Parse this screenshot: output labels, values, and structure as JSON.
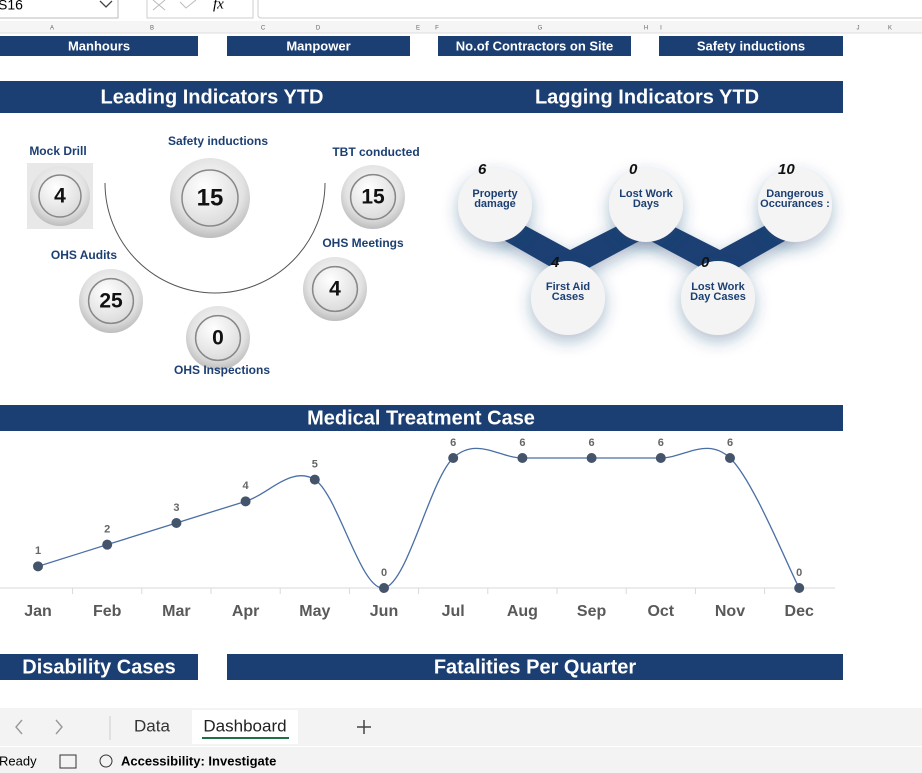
{
  "formula_bar": {
    "name_box": "S16",
    "fx_label": "fx"
  },
  "column_headers": [
    "A",
    "B",
    "C",
    "D",
    "E",
    "F",
    "G",
    "H",
    "I",
    "J",
    "K"
  ],
  "kpi_headers": [
    "Manhours",
    "Manpower",
    "No.of Contractors on Site",
    "Safety inductions"
  ],
  "leading": {
    "title": "Leading Indicators YTD",
    "items": [
      {
        "label": "Mock Drill",
        "value": 4
      },
      {
        "label": "Safety inductions",
        "value": 15
      },
      {
        "label": "TBT conducted",
        "value": 15
      },
      {
        "label": "OHS Audits",
        "value": 25
      },
      {
        "label": "OHS Meetings",
        "value": 4
      },
      {
        "label": "OHS Inspections",
        "value": 0
      }
    ]
  },
  "lagging": {
    "title": "Lagging Indicators YTD",
    "items": [
      {
        "label": "Property damage",
        "value": 6
      },
      {
        "label": "First Aid Cases",
        "value": 4
      },
      {
        "label": "Lost Work Days",
        "value": 0
      },
      {
        "label": "Lost Work Day Cases",
        "value": 0
      },
      {
        "label": "Dangerous Occurances :",
        "value": 10
      }
    ]
  },
  "medical": {
    "title": "Medical Treatment Case",
    "months": [
      "Jan",
      "Feb",
      "Mar",
      "Apr",
      "May",
      "Jun",
      "Jul",
      "Aug",
      "Sep",
      "Oct",
      "Nov",
      "Dec"
    ],
    "values": [
      1,
      2,
      3,
      4,
      5,
      0,
      6,
      6,
      6,
      6,
      6,
      0
    ]
  },
  "disability": {
    "title": "Disability Cases"
  },
  "fatalities": {
    "title": "Fatalities Per Quarter"
  },
  "sheet_tabs": [
    "Data",
    "Dashboard"
  ],
  "status_bar": {
    "mode": "Ready",
    "accessibility": "Accessibility: Investigate"
  }
}
